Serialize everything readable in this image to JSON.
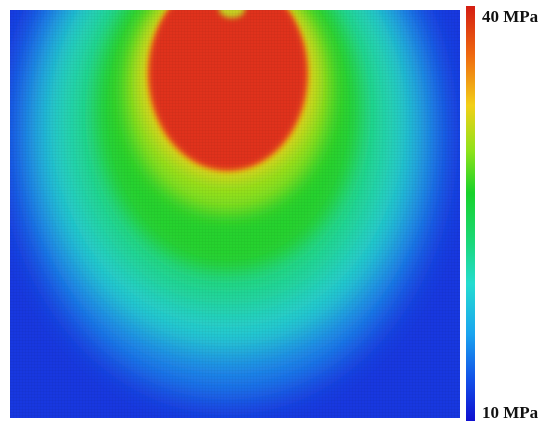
{
  "colorbar": {
    "max_label": "40 MPa",
    "min_label": "10 MPa",
    "max_value": 40,
    "min_value": 10,
    "unit": "MPa",
    "colors_top_to_bottom": [
      "#d41d12",
      "#ef6a10",
      "#f2d018",
      "#8ee21a",
      "#18d22a",
      "#1ad87a",
      "#24dcd0",
      "#1aa4ef",
      "#1250e8",
      "#1010d0"
    ]
  },
  "contour_plot": {
    "background_color": "#1838e0",
    "high_region_color": "#e0301c"
  }
}
